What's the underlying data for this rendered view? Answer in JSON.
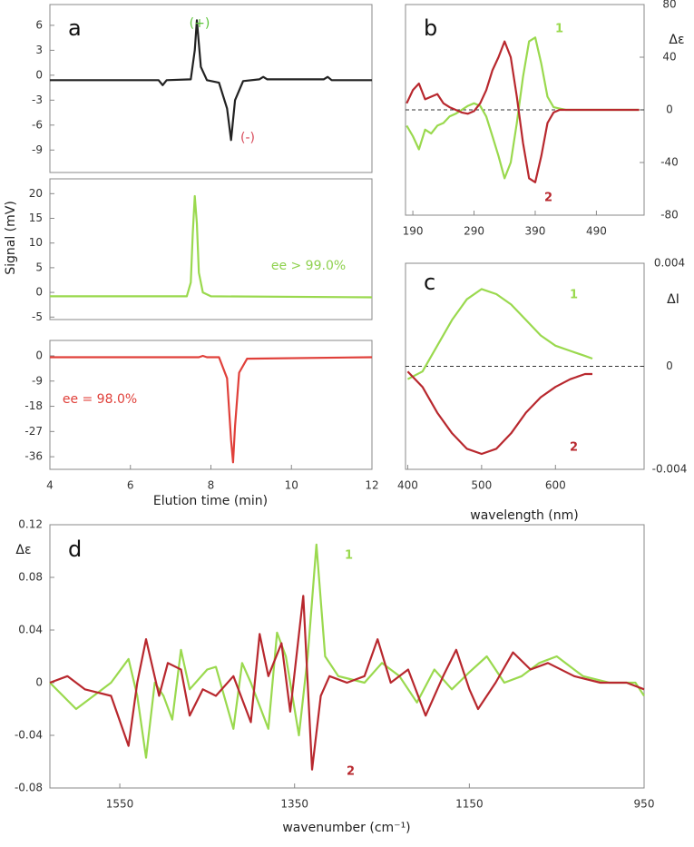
{
  "chart_data": [
    {
      "type": "line",
      "title": "a",
      "xlim": [
        4,
        12
      ],
      "ylim": [
        -11.7,
        8.5
      ],
      "yticks": [
        6,
        3,
        0,
        -3,
        -6,
        -9
      ],
      "series": [
        {
          "color": "#222222",
          "x": [
            4,
            6.7,
            6.8,
            6.9,
            7.5,
            7.6,
            7.65,
            7.75,
            7.9,
            8.2,
            8.4,
            8.5,
            8.6,
            8.8,
            9.2,
            9.3,
            9.4,
            10.8,
            10.9,
            11,
            12
          ],
          "values": [
            -0.6,
            -0.6,
            -1.2,
            -0.6,
            -0.5,
            3,
            6.6,
            1,
            -0.6,
            -0.9,
            -4,
            -7.8,
            -3,
            -0.7,
            -0.5,
            -0.2,
            -0.5,
            -0.5,
            -0.2,
            -0.6,
            -0.6
          ]
        }
      ],
      "annotations": [
        {
          "text": "(+)",
          "color": "#5cc43a"
        },
        {
          "text": "(-)",
          "color": "#d84a5a"
        }
      ]
    },
    {
      "type": "line",
      "ylabel": "Signal (mV)",
      "xlim": [
        4,
        12
      ],
      "ylim": [
        -5.5,
        23
      ],
      "yticks": [
        20,
        15,
        10,
        5,
        0,
        -5
      ],
      "series": [
        {
          "color": "#9ad94e",
          "x": [
            4,
            7.4,
            7.5,
            7.55,
            7.6,
            7.65,
            7.7,
            7.8,
            8,
            12
          ],
          "values": [
            -0.8,
            -0.8,
            2,
            12,
            19.5,
            14,
            4,
            0,
            -0.8,
            -1
          ]
        }
      ],
      "annotations": [
        {
          "text": "ee > 99.0%",
          "color": "#8fd14f"
        }
      ]
    },
    {
      "type": "line",
      "xlabel": "Elution time (min)",
      "xlim": [
        4,
        12
      ],
      "xticks": [
        4,
        6,
        8,
        10,
        12
      ],
      "ylim": [
        -40.5,
        5.5
      ],
      "yticks": [
        0,
        -9,
        -18,
        -27,
        -36
      ],
      "series": [
        {
          "color": "#e0403a",
          "x": [
            4,
            7.7,
            7.8,
            7.9,
            8.2,
            8.4,
            8.5,
            8.55,
            8.6,
            8.7,
            8.9,
            12
          ],
          "values": [
            -0.5,
            -0.5,
            0,
            -0.5,
            -0.5,
            -8,
            -30,
            -38,
            -25,
            -6,
            -1,
            -0.5
          ]
        }
      ],
      "annotations": [
        {
          "text": "ee = 98.0%",
          "color": "#e0403a"
        }
      ]
    },
    {
      "type": "line",
      "title": "b",
      "ylabel": "Δε",
      "xlim": [
        178,
        568
      ],
      "xticks": [
        190,
        290,
        390,
        490
      ],
      "ylim": [
        -80,
        80
      ],
      "yticks": [
        80,
        40,
        0,
        -40,
        -80
      ],
      "zero_line": true,
      "series": [
        {
          "name": "1",
          "color": "#9ad94e",
          "x": [
            180,
            190,
            200,
            210,
            220,
            230,
            240,
            250,
            260,
            270,
            280,
            290,
            300,
            310,
            320,
            330,
            340,
            350,
            360,
            370,
            380,
            390,
            400,
            410,
            420,
            430,
            440,
            460,
            500,
            560
          ],
          "values": [
            -12,
            -20,
            -30,
            -15,
            -18,
            -12,
            -10,
            -5,
            -3,
            0,
            3,
            5,
            3,
            -5,
            -20,
            -35,
            -52,
            -40,
            -10,
            25,
            52,
            55,
            35,
            10,
            2,
            1,
            0,
            0,
            0,
            0
          ]
        },
        {
          "name": "2",
          "color": "#b8282e",
          "x": [
            180,
            190,
            200,
            210,
            220,
            230,
            240,
            250,
            260,
            270,
            280,
            290,
            300,
            310,
            320,
            330,
            340,
            350,
            360,
            370,
            380,
            390,
            400,
            410,
            420,
            430,
            440,
            460,
            500,
            560
          ],
          "values": [
            5,
            15,
            20,
            8,
            10,
            12,
            5,
            2,
            0,
            -2,
            -3,
            -1,
            5,
            15,
            30,
            40,
            52,
            40,
            10,
            -25,
            -52,
            -55,
            -35,
            -10,
            -2,
            0,
            0,
            0,
            0,
            0
          ]
        }
      ]
    },
    {
      "type": "line",
      "title": "c",
      "ylabel": "ΔI",
      "xlabel": "wavelength (nm)",
      "xlim": [
        397,
        720
      ],
      "xticks": [
        400,
        500,
        600
      ],
      "ylim": [
        -0.004,
        0.004
      ],
      "yticks": [
        0.004,
        0,
        -0.004
      ],
      "zero_line": true,
      "series": [
        {
          "name": "1",
          "color": "#9ad94e",
          "x": [
            400,
            420,
            440,
            460,
            480,
            500,
            520,
            540,
            560,
            580,
            600,
            620,
            640,
            650
          ],
          "values": [
            -0.0005,
            -0.0002,
            0.0008,
            0.0018,
            0.0026,
            0.003,
            0.0028,
            0.0024,
            0.0018,
            0.0012,
            0.0008,
            0.0006,
            0.0004,
            0.0003
          ]
        },
        {
          "name": "2",
          "color": "#b8282e",
          "x": [
            400,
            420,
            440,
            460,
            480,
            500,
            520,
            540,
            560,
            580,
            600,
            620,
            640,
            650
          ],
          "values": [
            -0.0002,
            -0.0008,
            -0.0018,
            -0.0026,
            -0.0032,
            -0.0034,
            -0.0032,
            -0.0026,
            -0.0018,
            -0.0012,
            -0.0008,
            -0.0005,
            -0.0003,
            -0.0003
          ]
        }
      ]
    },
    {
      "type": "line",
      "title": "d",
      "ylabel": "Δε",
      "xlabel": "wavenumber (cm⁻¹)",
      "xlim": [
        1630,
        950
      ],
      "xticks": [
        1550,
        1350,
        1150,
        950
      ],
      "ylim": [
        -0.08,
        0.12
      ],
      "yticks": [
        0.12,
        0.08,
        0.04,
        0,
        -0.04,
        -0.08
      ],
      "series": [
        {
          "name": "1",
          "color": "#9ad94e",
          "x": [
            1630,
            1600,
            1580,
            1560,
            1540,
            1530,
            1520,
            1510,
            1500,
            1490,
            1480,
            1470,
            1450,
            1440,
            1420,
            1410,
            1400,
            1380,
            1370,
            1360,
            1345,
            1335,
            1325,
            1315,
            1300,
            1270,
            1250,
            1230,
            1210,
            1190,
            1170,
            1150,
            1130,
            1110,
            1090,
            1070,
            1050,
            1020,
            990,
            960,
            950
          ],
          "values": [
            0,
            -0.02,
            -0.01,
            0,
            0.018,
            -0.01,
            -0.057,
            0,
            -0.01,
            -0.028,
            0.025,
            -0.005,
            0.01,
            0.012,
            -0.035,
            0.015,
            0,
            -0.035,
            0.038,
            0.02,
            -0.04,
            0.02,
            0.105,
            0.02,
            0.005,
            0,
            0.015,
            0.005,
            -0.015,
            0.01,
            -0.005,
            0.008,
            0.02,
            0,
            0.005,
            0.015,
            0.02,
            0.005,
            0,
            0,
            -0.01
          ]
        },
        {
          "name": "2",
          "color": "#b8282e",
          "x": [
            1630,
            1610,
            1590,
            1560,
            1540,
            1530,
            1520,
            1505,
            1495,
            1480,
            1470,
            1455,
            1440,
            1420,
            1400,
            1390,
            1380,
            1365,
            1355,
            1340,
            1330,
            1320,
            1310,
            1290,
            1270,
            1255,
            1240,
            1220,
            1200,
            1180,
            1165,
            1150,
            1140,
            1120,
            1100,
            1080,
            1060,
            1030,
            1000,
            970,
            950
          ],
          "values": [
            0,
            0.005,
            -0.005,
            -0.01,
            -0.048,
            0,
            0.033,
            -0.01,
            0.015,
            0.01,
            -0.025,
            -0.005,
            -0.01,
            0.005,
            -0.03,
            0.037,
            0.005,
            0.03,
            -0.022,
            0.066,
            -0.066,
            -0.01,
            0.005,
            0,
            0.005,
            0.033,
            0,
            0.01,
            -0.025,
            0.005,
            0.025,
            -0.005,
            -0.02,
            0,
            0.023,
            0.01,
            0.015,
            0.005,
            0,
            0,
            -0.005
          ]
        }
      ]
    }
  ]
}
